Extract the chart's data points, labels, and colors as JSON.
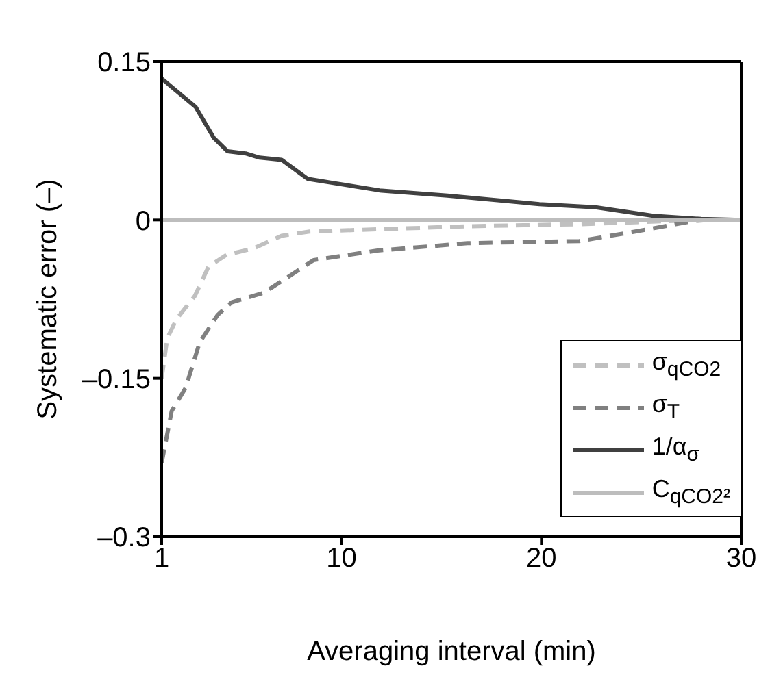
{
  "chart_data": {
    "type": "line",
    "xlabel": "Averaging interval (min)",
    "ylabel": "Systematic error (–)",
    "xlim": [
      1,
      30
    ],
    "xticks": [
      1,
      10,
      20,
      30
    ],
    "ylim": [
      -0.3,
      0.15
    ],
    "yticks": [
      {
        "value": -0.3,
        "label": "–0.3"
      },
      {
        "value": -0.15,
        "label": "–0.15"
      },
      0,
      0.15
    ],
    "legend": "bottom right",
    "marker": "none",
    "series": [
      {
        "name": "σ$_{qCO2}$",
        "color": "#c0c0c0",
        "line_style": "dashed",
        "x": [
          1,
          1.28,
          1.74,
          2.66,
          3.35,
          4.25,
          5.6,
          7.0,
          8.4,
          16.3,
          21.9,
          28,
          30
        ],
        "values": [
          -0.15,
          -0.112,
          -0.094,
          -0.072,
          -0.044,
          -0.033,
          -0.027,
          -0.015,
          -0.011,
          -0.006,
          -0.004,
          0,
          0
        ]
      },
      {
        "name": "σ$_{T}$",
        "color": "#808080",
        "line_style": "dashed",
        "x": [
          1,
          1.5,
          2.2,
          2.9,
          3.8,
          4.5,
          6.1,
          7.25,
          8.6,
          11.8,
          16.3,
          21.9,
          25.3,
          27.6,
          28.5,
          30
        ],
        "values": [
          -0.23,
          -0.181,
          -0.159,
          -0.116,
          -0.09,
          -0.078,
          -0.069,
          -0.055,
          -0.038,
          -0.029,
          -0.022,
          -0.02,
          -0.009,
          -0.001,
          0,
          0
        ]
      },
      {
        "name": "1/α$_{σ}$",
        "color": "#404040",
        "line_style": "solid",
        "x": [
          1,
          1.5,
          2.7,
          3.6,
          4.3,
          5.2,
          5.9,
          7.0,
          8.3,
          9.6,
          11.9,
          15.3,
          19.9,
          22.7,
          25.6,
          28,
          30
        ],
        "values": [
          0.134,
          0.126,
          0.107,
          0.078,
          0.065,
          0.063,
          0.059,
          0.057,
          0.039,
          0.035,
          0.028,
          0.023,
          0.015,
          0.012,
          0.004,
          0.001,
          0
        ]
      },
      {
        "name": "C$_{qCO2²}$",
        "color": "#bdbdbd",
        "line_style": "solid",
        "x": [
          1,
          30
        ],
        "values": [
          0,
          0
        ]
      }
    ]
  }
}
